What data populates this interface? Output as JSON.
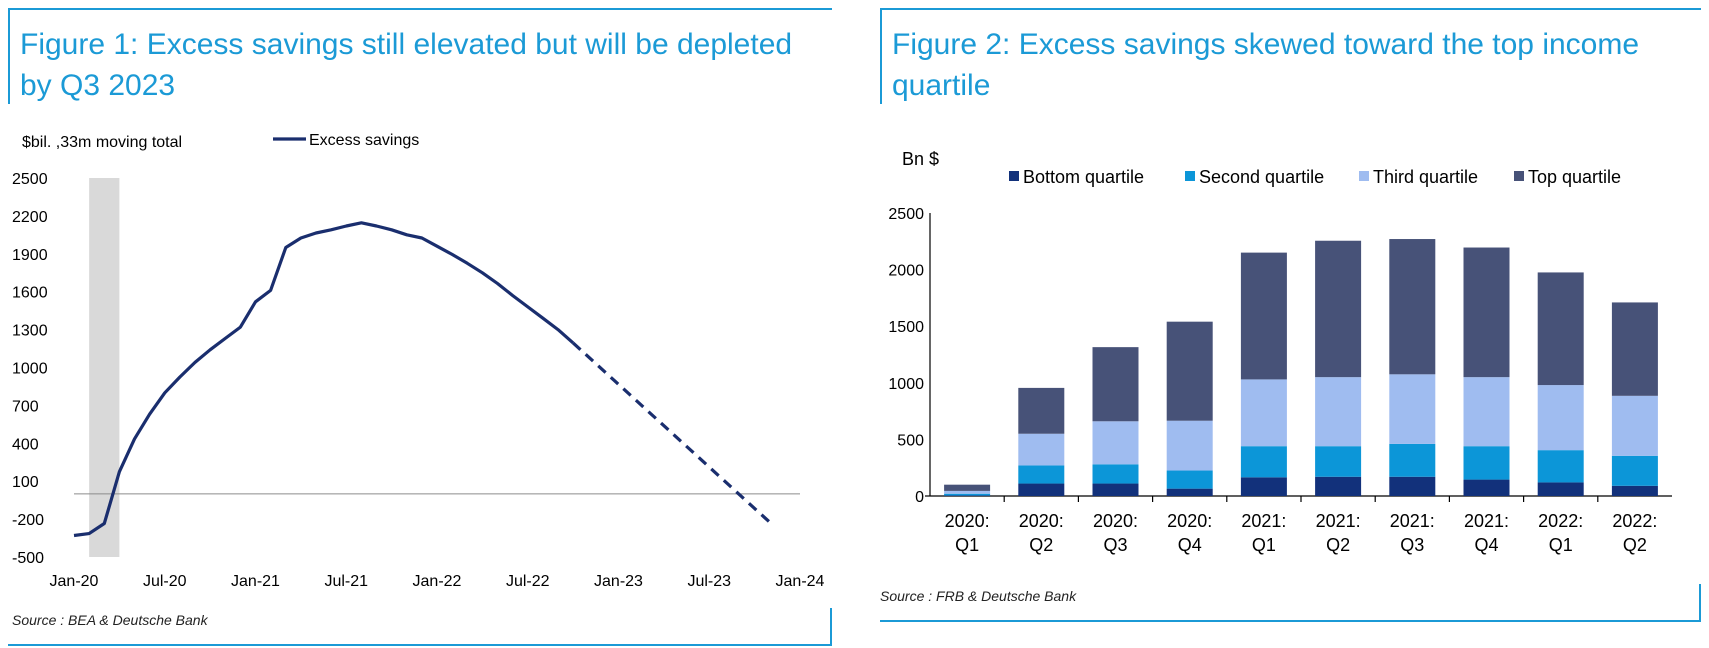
{
  "figure1": {
    "title": "Figure 1: Excess savings still elevated but will be depleted by Q3 2023",
    "source": "Source : BEA & Deutsche Bank"
  },
  "figure2": {
    "title": "Figure 2: Excess savings skewed toward the top income quartile",
    "source": "Source : FRB & Deutsche Bank"
  },
  "chart_data": [
    {
      "type": "line",
      "ylabel": "$bil. ,33m moving total",
      "yticks": [
        2500,
        2200,
        1900,
        1600,
        1300,
        1000,
        700,
        400,
        100,
        -200,
        -500
      ],
      "ylim": [
        -500,
        2500
      ],
      "xlim": [
        "2020-01",
        "2024-01"
      ],
      "xticks": [
        "Jan-20",
        "Jul-20",
        "Jan-21",
        "Jul-21",
        "Jan-22",
        "Jul-22",
        "Jan-23",
        "Jul-23",
        "Jan-24"
      ],
      "shaded_region": {
        "from": "2020-02",
        "to": "2020-04"
      },
      "zero_line": 0,
      "series": [
        {
          "name": "Excess savings",
          "color": "#1a2e6e",
          "style": "solid",
          "points": [
            [
              "2020-01",
              -330
            ],
            [
              "2020-02",
              -315
            ],
            [
              "2020-03",
              -235
            ],
            [
              "2020-04",
              175
            ],
            [
              "2020-05",
              435
            ],
            [
              "2020-06",
              630
            ],
            [
              "2020-07",
              800
            ],
            [
              "2020-08",
              925
            ],
            [
              "2020-09",
              1040
            ],
            [
              "2020-10",
              1140
            ],
            [
              "2020-11",
              1230
            ],
            [
              "2020-12",
              1320
            ],
            [
              "2021-01",
              1520
            ],
            [
              "2021-02",
              1610
            ],
            [
              "2021-03",
              1950
            ],
            [
              "2021-04",
              2025
            ],
            [
              "2021-05",
              2065
            ],
            [
              "2021-06",
              2090
            ],
            [
              "2021-07",
              2120
            ],
            [
              "2021-08",
              2145
            ],
            [
              "2021-09",
              2120
            ],
            [
              "2021-10",
              2090
            ],
            [
              "2021-11",
              2050
            ],
            [
              "2021-12",
              2025
            ],
            [
              "2022-01",
              1960
            ],
            [
              "2022-02",
              1895
            ],
            [
              "2022-03",
              1825
            ],
            [
              "2022-04",
              1750
            ],
            [
              "2022-05",
              1665
            ],
            [
              "2022-06",
              1570
            ],
            [
              "2022-07",
              1480
            ],
            [
              "2022-08",
              1390
            ],
            [
              "2022-09",
              1300
            ],
            [
              "2022-10",
              1195
            ]
          ]
        },
        {
          "name": "Excess savings (projection)",
          "color": "#1a2e6e",
          "style": "dashed",
          "points": [
            [
              "2022-10",
              1195
            ],
            [
              "2023-11",
              -225
            ]
          ]
        }
      ]
    },
    {
      "type": "bar",
      "stacked": true,
      "ylabel": "Bn $",
      "ylim": [
        0,
        2500
      ],
      "yticks": [
        2500,
        2000,
        1500,
        1000,
        500,
        0
      ],
      "categories": [
        [
          "2020:",
          "Q1"
        ],
        [
          "2020:",
          "Q2"
        ],
        [
          "2020:",
          "Q3"
        ],
        [
          "2020:",
          "Q4"
        ],
        [
          "2021:",
          "Q1"
        ],
        [
          "2021:",
          "Q2"
        ],
        [
          "2021:",
          "Q3"
        ],
        [
          "2021:",
          "Q4"
        ],
        [
          "2022:",
          "Q1"
        ],
        [
          "2022:",
          "Q2"
        ]
      ],
      "legend_position": "top",
      "series": [
        {
          "name": "Bottom quartile",
          "color": "#12317b",
          "values": [
            5,
            110,
            110,
            65,
            165,
            170,
            170,
            145,
            120,
            90
          ]
        },
        {
          "name": "Second quartile",
          "color": "#0c96d8",
          "values": [
            15,
            160,
            170,
            160,
            275,
            270,
            290,
            295,
            285,
            265
          ]
        },
        {
          "name": "Third quartile",
          "color": "#9fbcf0",
          "values": [
            25,
            280,
            380,
            440,
            590,
            610,
            615,
            610,
            575,
            530
          ]
        },
        {
          "name": "Top quartile",
          "color": "#475278",
          "values": [
            55,
            405,
            655,
            875,
            1120,
            1205,
            1195,
            1145,
            995,
            825
          ]
        }
      ]
    }
  ]
}
